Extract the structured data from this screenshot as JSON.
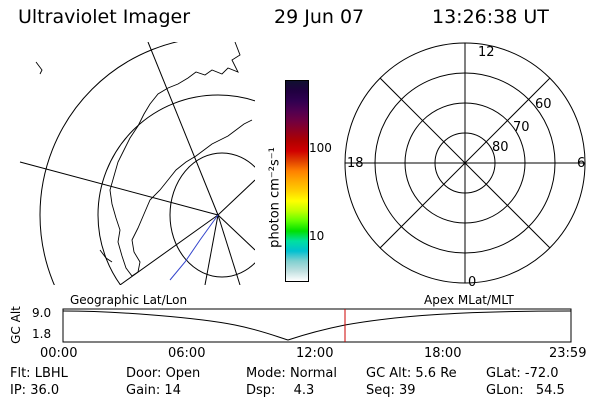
{
  "header": {
    "instrument": "Ultraviolet Imager",
    "date": "29 Jun 07",
    "time": "13:26:38 UT"
  },
  "colorbar": {
    "unit_label": "photon cm⁻²s⁻¹",
    "ticks": [
      "100",
      "10"
    ],
    "colors": [
      "#101030",
      "#200040",
      "#300050",
      "#500050",
      "#700040",
      "#900020",
      "#b00000",
      "#d00000",
      "#e04000",
      "#ff8000",
      "#ffaa00",
      "#ffd000",
      "#ffff00",
      "#c0ff00",
      "#60ff00",
      "#00e000",
      "#00e0a0",
      "#00c0d0",
      "#80d0d0",
      "#c0e0e0",
      "#ffffff"
    ]
  },
  "polar_plot": {
    "labels": {
      "top": "12",
      "left": "18",
      "right": "6",
      "bottom": "0"
    },
    "lat_labels": [
      "60",
      "70",
      "80"
    ]
  },
  "timeline": {
    "y_axis_label": "GC Alt",
    "y_ticks": [
      "9.0",
      "1.8"
    ],
    "left_title": "Geographic Lat/Lon",
    "right_title": "Apex MLat/MLT",
    "x_ticks": [
      "00:00",
      "06:00",
      "12:00",
      "18:00",
      "23:59"
    ],
    "marker_color": "#cc0000"
  },
  "status": {
    "filter": {
      "label": "Flt:",
      "value": "LBHL"
    },
    "ip": {
      "label": "IP:",
      "value": "36.0"
    },
    "door": {
      "label": "Door:",
      "value": "Open"
    },
    "gain": {
      "label": "Gain:",
      "value": "14"
    },
    "mode": {
      "label": "Mode:",
      "value": "Normal"
    },
    "dsp": {
      "label": "Dsp:",
      "value": "4.3"
    },
    "gc_alt": {
      "label": "GC Alt:",
      "value": "5.6 Re"
    },
    "seq": {
      "label": "Seq:",
      "value": "39"
    },
    "glat": {
      "label": "GLat:",
      "value": "-72.0"
    },
    "glon": {
      "label": "GLon:",
      "value": "54.5"
    }
  }
}
